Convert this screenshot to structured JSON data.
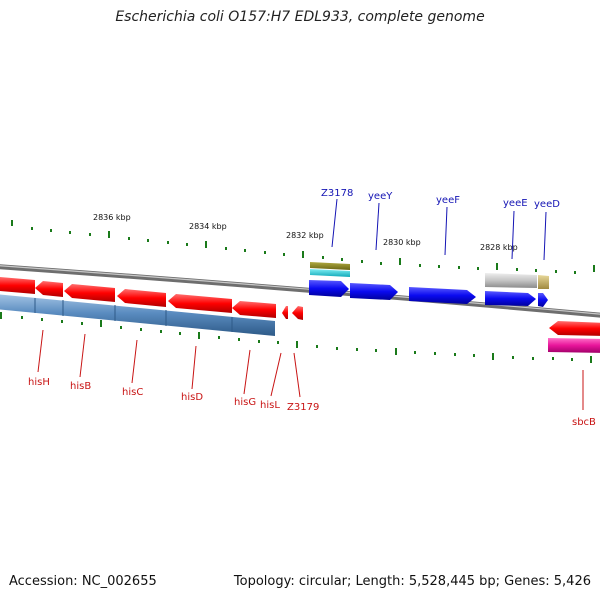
{
  "title": "Escherichia coli O157:H7 EDL933, complete genome",
  "accession": "Accession: NC_002655",
  "summary": "Topology: circular; Length: 5,528,445 bp; Genes: 5,426",
  "colors": {
    "forward_gene": "#0a0af0",
    "reverse_gene": "#ff0000",
    "reverse_cds": "#4f82b8",
    "forward_label": "#1414b4",
    "reverse_label": "#c81414",
    "backbone": "#8a8a8a",
    "tick": "#1a7a1a",
    "misc_gene": "#c8c8c8",
    "misc_tan": "#c8b46e",
    "olive_feature": "#8f8a22",
    "cyan_feature": "#22c8d0",
    "pink_feature": "#e8149a"
  },
  "scale_labels": [
    {
      "kbp": 2836,
      "text": "2836 kbp"
    },
    {
      "kbp": 2834,
      "text": "2834 kbp"
    },
    {
      "kbp": 2832,
      "text": "2832 kbp"
    },
    {
      "kbp": 2830,
      "text": "2830 kbp"
    },
    {
      "kbp": 2828,
      "text": "2828 kbp"
    }
  ],
  "forward_genes": [
    "Z3178",
    "yeeY",
    "yeeF",
    "yeeE",
    "yeeD"
  ],
  "reverse_genes": [
    "hisH",
    "hisB",
    "hisC",
    "hisD",
    "hisG",
    "hisL",
    "Z3179",
    "sbcB"
  ]
}
